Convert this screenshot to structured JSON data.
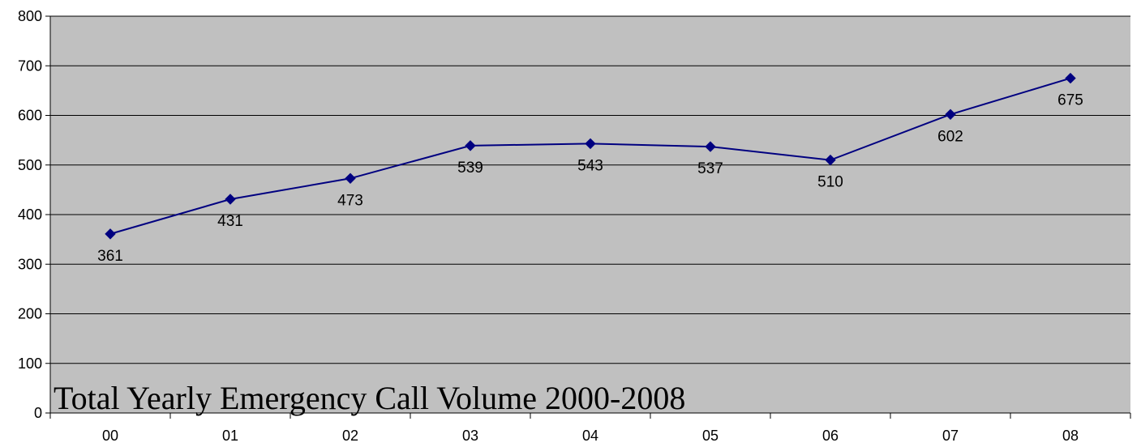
{
  "chart_data": {
    "type": "line",
    "title": "Total Yearly Emergency Call Volume 2000-2008",
    "xlabel": "",
    "ylabel": "",
    "categories": [
      "00",
      "01",
      "02",
      "03",
      "04",
      "05",
      "06",
      "07",
      "08"
    ],
    "series": [
      {
        "values": [
          361,
          431,
          473,
          539,
          543,
          537,
          510,
          602,
          675
        ]
      }
    ],
    "data_labels": [
      "361",
      "431",
      "473",
      "539",
      "543",
      "537",
      "510",
      "602",
      "675"
    ],
    "ylim": [
      0,
      800
    ],
    "y_ticks": [
      "0",
      "100",
      "200",
      "300",
      "400",
      "500",
      "600",
      "700",
      "800"
    ],
    "y_tick_values": [
      0,
      100,
      200,
      300,
      400,
      500,
      600,
      700,
      800
    ],
    "grid": true,
    "legend": "none",
    "colors": {
      "plot_background": "#c0c0c0",
      "series_line": "#000080",
      "gridline": "#000000"
    },
    "marker": "diamond"
  }
}
